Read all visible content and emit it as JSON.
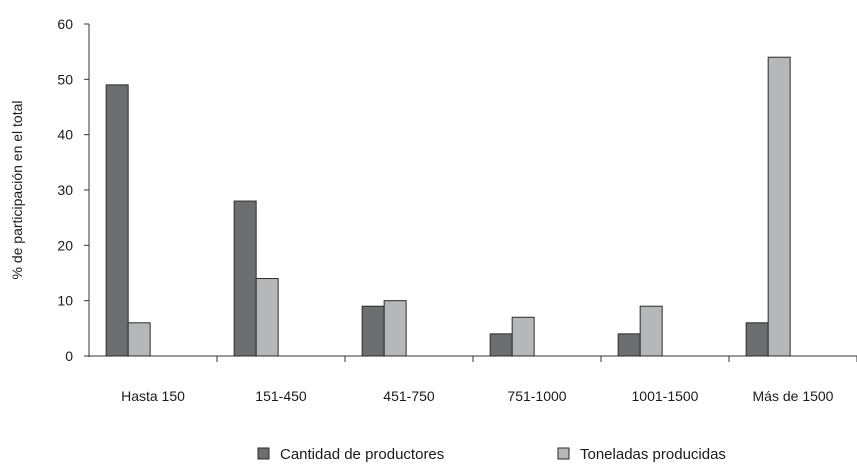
{
  "chart_data": {
    "type": "bar",
    "title": "",
    "ylabel": "% de participación en el total",
    "xlabel": "",
    "ylim": [
      0,
      60
    ],
    "yticks": [
      0,
      10,
      20,
      30,
      40,
      50,
      60
    ],
    "categories": [
      "Hasta 150",
      "151-450",
      "451-750",
      "751-1000",
      "1001-1500",
      "Más de 1500"
    ],
    "series": [
      {
        "name": "Cantidad de productores",
        "color": "#6d6e6f",
        "values": [
          49,
          28,
          9,
          4,
          4,
          6
        ]
      },
      {
        "name": "Toneladas producidas",
        "color": "#b6b7b8",
        "values": [
          6,
          14,
          10,
          7,
          9,
          54
        ]
      }
    ],
    "legend_position": "bottom",
    "grid": false
  }
}
